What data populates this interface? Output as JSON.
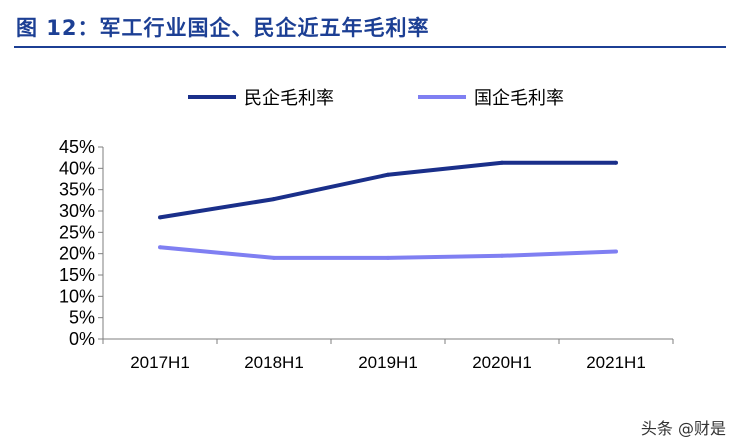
{
  "figure": {
    "title": "图 12：军工行业国企、民企近五年毛利率"
  },
  "watermark": "头条 @财是",
  "chart_data": {
    "type": "line",
    "categories": [
      "2017H1",
      "2018H1",
      "2019H1",
      "2020H1",
      "2021H1"
    ],
    "series": [
      {
        "name": "民企毛利率",
        "values": [
          0.285,
          0.328,
          0.385,
          0.413,
          0.413
        ],
        "color": "#1a2f8a"
      },
      {
        "name": "国企毛利率",
        "values": [
          0.215,
          0.19,
          0.19,
          0.195,
          0.205
        ],
        "color": "#7f7ff2"
      }
    ],
    "yticks": [
      "0%",
      "5%",
      "10%",
      "15%",
      "20%",
      "25%",
      "30%",
      "35%",
      "40%",
      "45%"
    ],
    "ylim": [
      0,
      0.45
    ],
    "grid": false,
    "legend": "top"
  }
}
